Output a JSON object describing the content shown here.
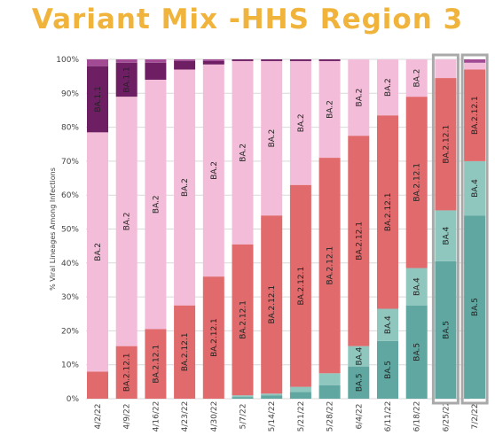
{
  "title": "Variant Mix -HHS Region 3",
  "colors": {
    "title": "#F0B43C",
    "BA.5": "#5FA7A0",
    "BA.4": "#8FC7BF",
    "BA.2.12.1": "#E06A6C",
    "BA.2": "#F3BCD8",
    "BA.1.1": "#6E1F64",
    "Other": "#A24A93",
    "highlight_border": "#A9A9A9",
    "gridline": "#D9D9D9"
  },
  "chart_data": {
    "type": "bar",
    "stacked": true,
    "ylabel": "% Viral Lineages Among Infections",
    "xlabel": "",
    "ylim": [
      0,
      100
    ],
    "yticks": [
      "0%",
      "10%",
      "20%",
      "30%",
      "40%",
      "50%",
      "60%",
      "70%",
      "80%",
      "90%",
      "100%"
    ],
    "grid": true,
    "categories": [
      "4/2/22",
      "4/9/22",
      "4/16/22",
      "4/23/22",
      "4/30/22",
      "5/7/22",
      "5/14/22",
      "5/21/22",
      "5/28/22",
      "6/4/22",
      "6/11/22",
      "6/18/22",
      "6/25/22",
      "7/2/22"
    ],
    "highlighted_categories": [
      "6/25/22",
      "7/2/22"
    ],
    "series": [
      {
        "name": "BA.5",
        "values": [
          0,
          0,
          0,
          0,
          0,
          0.5,
          1,
          2,
          4,
          9.5,
          17,
          27.5,
          40.5,
          54
        ]
      },
      {
        "name": "BA.4",
        "values": [
          0,
          0,
          0,
          0,
          0,
          0.5,
          0.5,
          1.5,
          3.5,
          6,
          9.5,
          11,
          15,
          16
        ]
      },
      {
        "name": "BA.2.12.1",
        "values": [
          8,
          15.5,
          20.5,
          27.5,
          36,
          44.5,
          52.5,
          59.5,
          63.5,
          62,
          57,
          50.5,
          39,
          27
        ]
      },
      {
        "name": "BA.2",
        "values": [
          70.5,
          73.5,
          73.5,
          69.5,
          62.5,
          54,
          45.5,
          36.5,
          28.5,
          22.5,
          16.5,
          11,
          5.5,
          2
        ]
      },
      {
        "name": "BA.1.1",
        "values": [
          19.5,
          10,
          5,
          2.5,
          1,
          0.5,
          0.5,
          0.5,
          0.5,
          0,
          0,
          0,
          0,
          0
        ]
      },
      {
        "name": "Other",
        "values": [
          2,
          1,
          1,
          0.5,
          0.5,
          0,
          0,
          0,
          0,
          0,
          0,
          0,
          0,
          1
        ]
      }
    ],
    "segment_labels": [
      {
        "category": "4/2/22",
        "series": "BA.1.1",
        "text": "BA.1.1"
      },
      {
        "category": "4/2/22",
        "series": "BA.2",
        "text": "BA.2"
      },
      {
        "category": "4/9/22",
        "series": "BA.1.1",
        "text": "BA.1.1"
      },
      {
        "category": "4/9/22",
        "series": "BA.2",
        "text": "BA.2"
      },
      {
        "category": "4/9/22",
        "series": "BA.2.12.1",
        "text": "BA.2.12.1"
      },
      {
        "category": "4/16/22",
        "series": "BA.2",
        "text": "BA.2"
      },
      {
        "category": "4/16/22",
        "series": "BA.2.12.1",
        "text": "BA.2.12.1"
      },
      {
        "category": "4/23/22",
        "series": "BA.2",
        "text": "BA.2"
      },
      {
        "category": "4/23/22",
        "series": "BA.2.12.1",
        "text": "BA.2.12.1"
      },
      {
        "category": "4/30/22",
        "series": "BA.2",
        "text": "BA.2"
      },
      {
        "category": "4/30/22",
        "series": "BA.2.12.1",
        "text": "BA.2.12.1"
      },
      {
        "category": "5/7/22",
        "series": "BA.2",
        "text": "BA.2"
      },
      {
        "category": "5/7/22",
        "series": "BA.2.12.1",
        "text": "BA.2.12.1"
      },
      {
        "category": "5/14/22",
        "series": "BA.2",
        "text": "BA.2"
      },
      {
        "category": "5/14/22",
        "series": "BA.2.12.1",
        "text": "BA.2.12.1"
      },
      {
        "category": "5/21/22",
        "series": "BA.2",
        "text": "BA.2"
      },
      {
        "category": "5/21/22",
        "series": "BA.2.12.1",
        "text": "BA.2.12.1"
      },
      {
        "category": "5/28/22",
        "series": "BA.2",
        "text": "BA.2"
      },
      {
        "category": "5/28/22",
        "series": "BA.2.12.1",
        "text": "BA.2.12.1"
      },
      {
        "category": "6/4/22",
        "series": "BA.2",
        "text": "BA.2"
      },
      {
        "category": "6/4/22",
        "series": "BA.2.12.1",
        "text": "BA.2.12.1"
      },
      {
        "category": "6/4/22",
        "series": "BA.4",
        "text": "BA.4"
      },
      {
        "category": "6/4/22",
        "series": "BA.5",
        "text": "BA.5"
      },
      {
        "category": "6/11/22",
        "series": "BA.2",
        "text": "BA.2"
      },
      {
        "category": "6/11/22",
        "series": "BA.2.12.1",
        "text": "BA.2.12.1"
      },
      {
        "category": "6/11/22",
        "series": "BA.4",
        "text": "BA.4"
      },
      {
        "category": "6/11/22",
        "series": "BA.5",
        "text": "BA.5"
      },
      {
        "category": "6/18/22",
        "series": "BA.2",
        "text": "BA.2"
      },
      {
        "category": "6/18/22",
        "series": "BA.2.12.1",
        "text": "BA.2.12.1"
      },
      {
        "category": "6/18/22",
        "series": "BA.4",
        "text": "BA.4"
      },
      {
        "category": "6/18/22",
        "series": "BA.5",
        "text": "BA.5"
      },
      {
        "category": "6/25/22",
        "series": "BA.2.12.1",
        "text": "BA.2.12.1"
      },
      {
        "category": "6/25/22",
        "series": "BA.4",
        "text": "BA.4"
      },
      {
        "category": "6/25/22",
        "series": "BA.5",
        "text": "BA.5"
      },
      {
        "category": "7/2/22",
        "series": "BA.2.12.1",
        "text": "BA.2.12.1"
      },
      {
        "category": "7/2/22",
        "series": "BA.4",
        "text": "BA.4"
      },
      {
        "category": "7/2/22",
        "series": "BA.5",
        "text": "BA.5"
      }
    ]
  }
}
